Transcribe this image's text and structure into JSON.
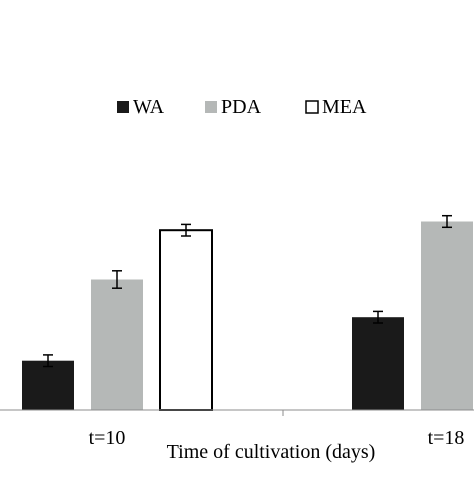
{
  "chart_data": {
    "type": "bar",
    "title": "",
    "xlabel": "Time of cultivation (days)",
    "ylabel": "",
    "categories": [
      "t=10",
      "t=18"
    ],
    "ylim": [
      0,
      100
    ],
    "legend_position": "top",
    "grid": false,
    "series": [
      {
        "name": "WA",
        "values": [
          17,
          32
        ],
        "errors": [
          2,
          2
        ],
        "style": "solid",
        "color": "#1a1a1a"
      },
      {
        "name": "PDA",
        "values": [
          45,
          65
        ],
        "errors": [
          3,
          2
        ],
        "style": "solid",
        "color": "#b5b8b7"
      },
      {
        "name": "MEA",
        "values": [
          62,
          null
        ],
        "errors": [
          2,
          null
        ],
        "style": "outline",
        "color": "#ffffff"
      }
    ]
  }
}
